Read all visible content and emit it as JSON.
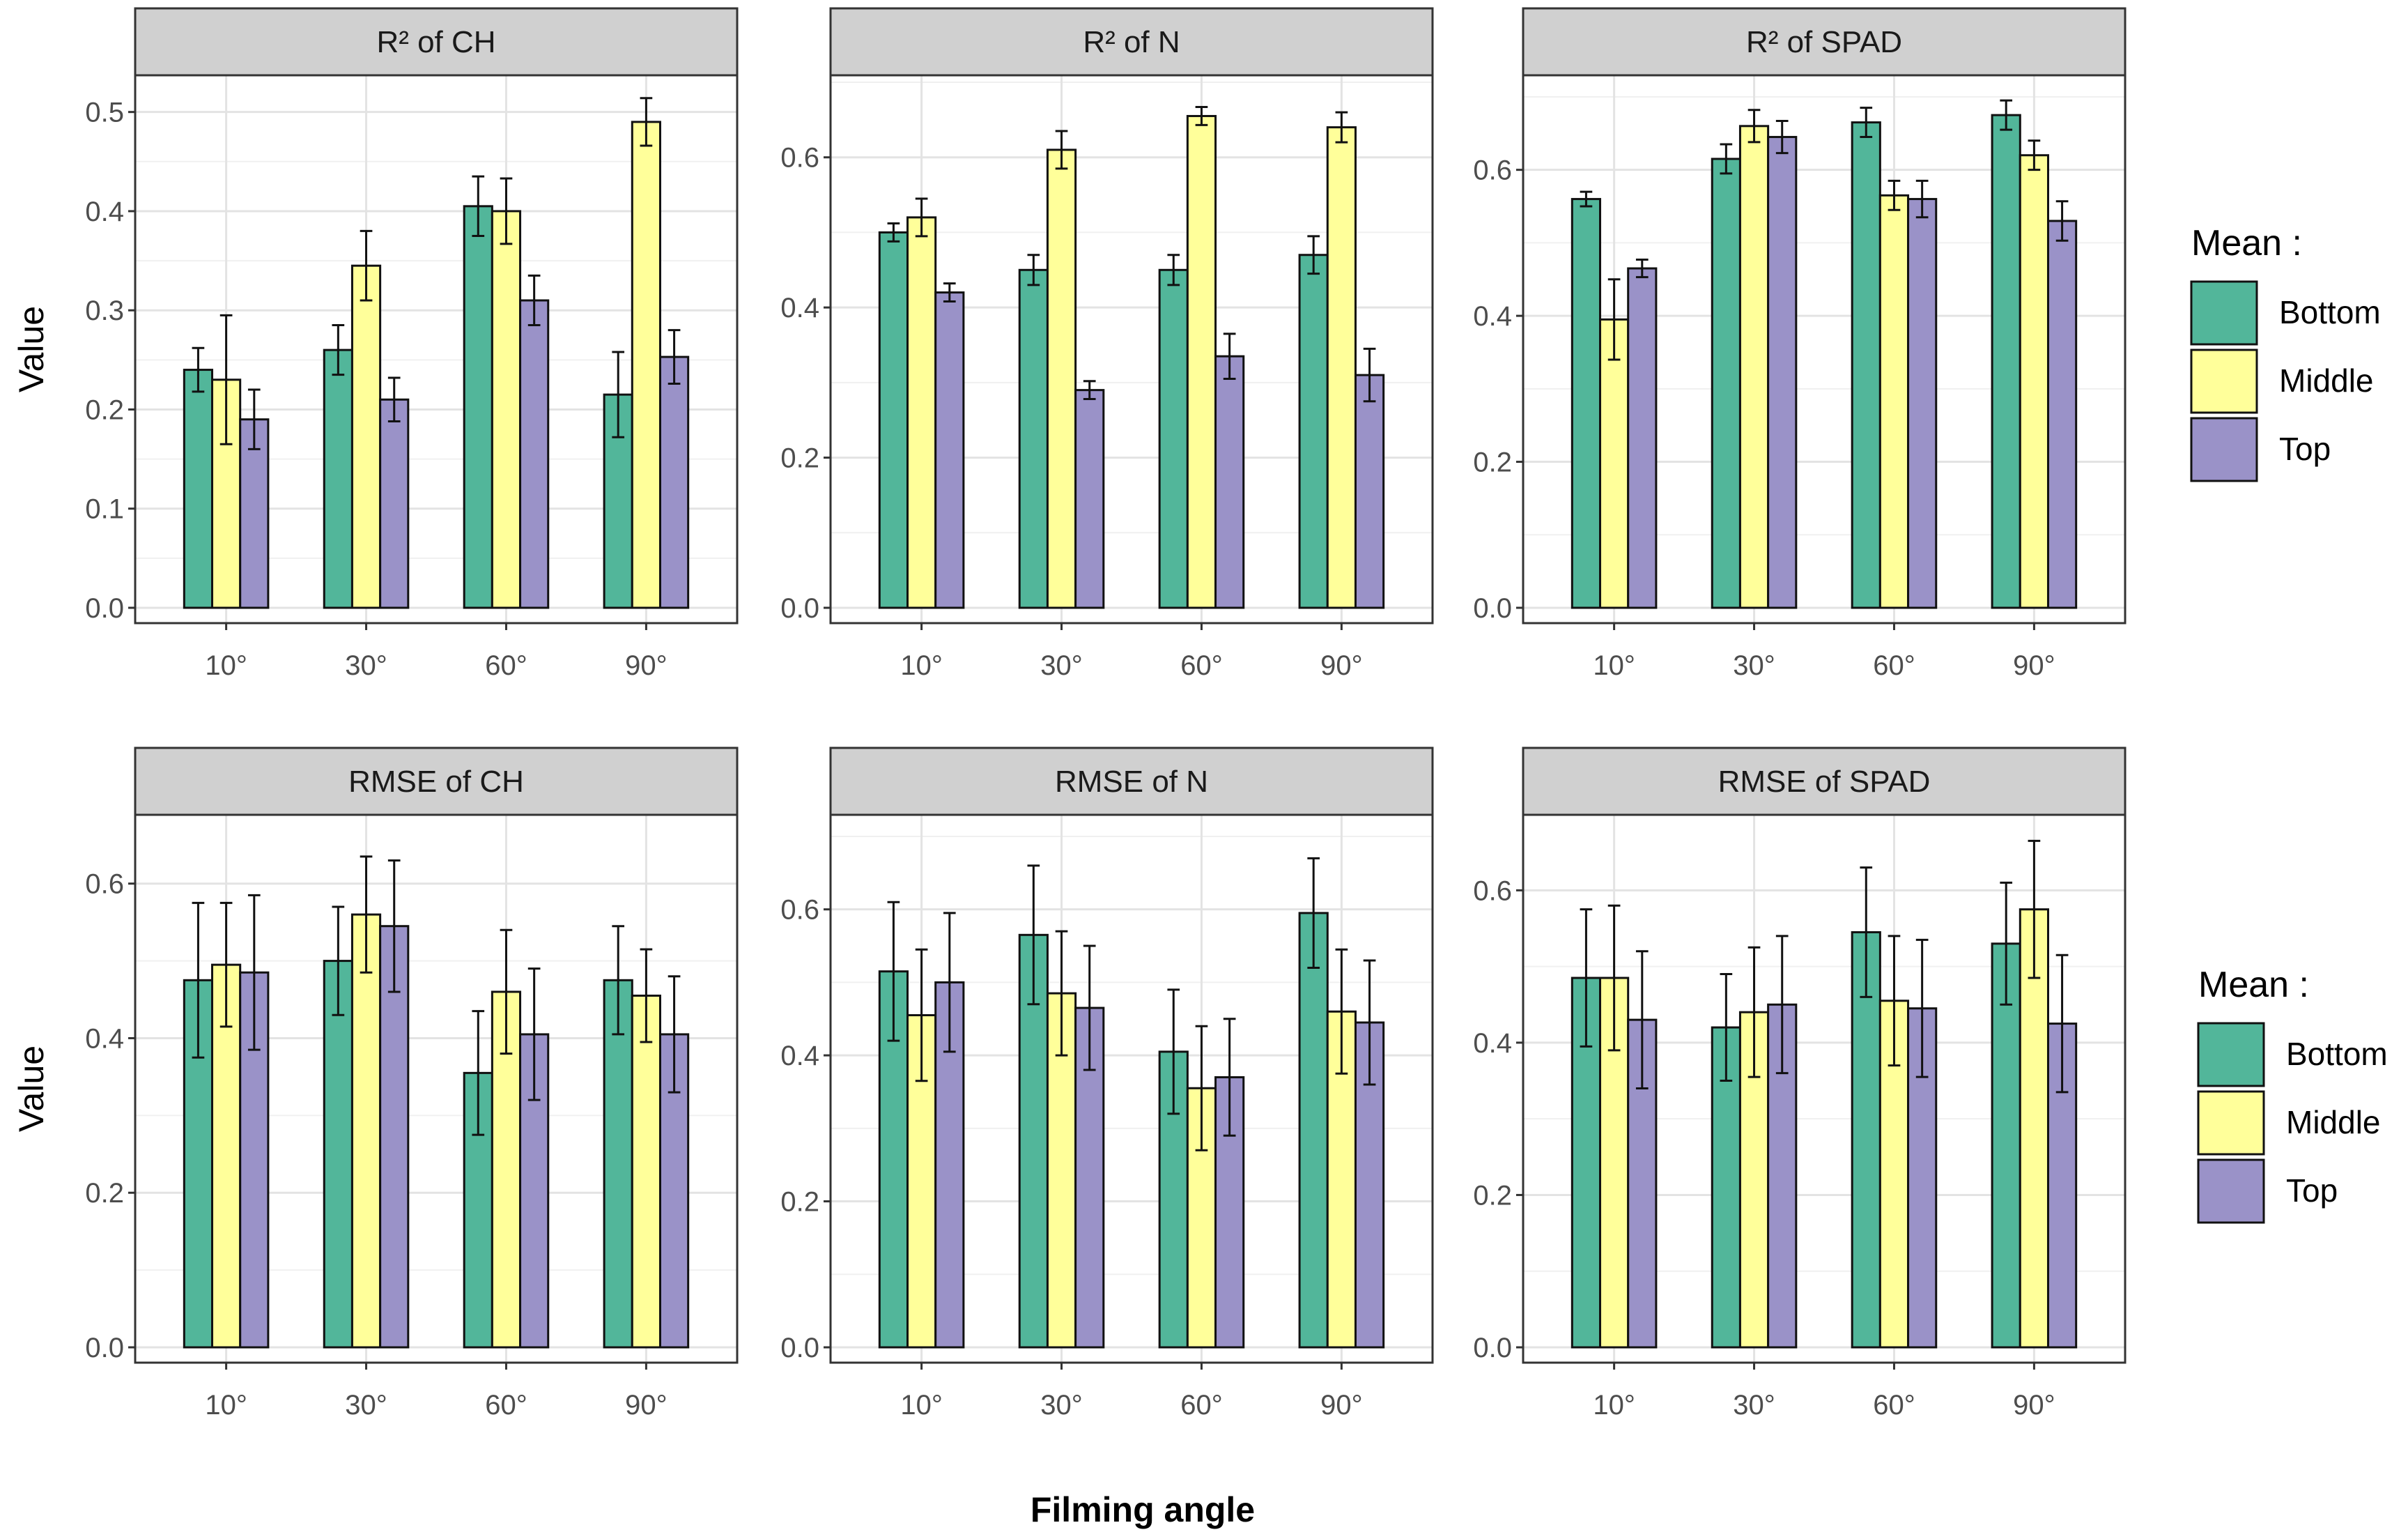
{
  "chart_data": [
    {
      "type": "bar",
      "title": "R² of CH",
      "categories": [
        "10°",
        "30°",
        "60°",
        "90°"
      ],
      "ylabel": "Value",
      "ylim": [
        0,
        0.53
      ],
      "yticks": [
        0.0,
        0.1,
        0.2,
        0.3,
        0.4,
        0.5
      ],
      "series": [
        {
          "name": "Bottom",
          "values": [
            0.24,
            0.26,
            0.405,
            0.215
          ],
          "errors": [
            0.022,
            0.025,
            0.03,
            0.043
          ]
        },
        {
          "name": "Middle",
          "values": [
            0.23,
            0.345,
            0.4,
            0.49
          ],
          "errors": [
            0.065,
            0.035,
            0.033,
            0.024
          ]
        },
        {
          "name": "Top",
          "values": [
            0.19,
            0.21,
            0.31,
            0.253
          ],
          "errors": [
            0.03,
            0.022,
            0.025,
            0.027
          ]
        }
      ]
    },
    {
      "type": "bar",
      "title": "R² of N",
      "categories": [
        "10°",
        "30°",
        "60°",
        "90°"
      ],
      "ylabel": "",
      "ylim": [
        0,
        0.7
      ],
      "yticks": [
        0.0,
        0.2,
        0.4,
        0.6
      ],
      "series": [
        {
          "name": "Bottom",
          "values": [
            0.5,
            0.45,
            0.45,
            0.47
          ],
          "errors": [
            0.012,
            0.02,
            0.02,
            0.025
          ]
        },
        {
          "name": "Middle",
          "values": [
            0.52,
            0.61,
            0.655,
            0.64
          ],
          "errors": [
            0.025,
            0.025,
            0.012,
            0.02
          ]
        },
        {
          "name": "Top",
          "values": [
            0.42,
            0.29,
            0.335,
            0.31
          ],
          "errors": [
            0.012,
            0.012,
            0.03,
            0.035
          ]
        }
      ]
    },
    {
      "type": "bar",
      "title": "R² of SPAD",
      "categories": [
        "10°",
        "30°",
        "60°",
        "90°"
      ],
      "ylabel": "",
      "ylim": [
        0,
        0.72
      ],
      "yticks": [
        0.0,
        0.2,
        0.4,
        0.6
      ],
      "series": [
        {
          "name": "Bottom",
          "values": [
            0.56,
            0.615,
            0.665,
            0.675
          ],
          "errors": [
            0.01,
            0.02,
            0.02,
            0.02
          ]
        },
        {
          "name": "Middle",
          "values": [
            0.395,
            0.66,
            0.565,
            0.62
          ],
          "errors": [
            0.055,
            0.022,
            0.02,
            0.02
          ]
        },
        {
          "name": "Top",
          "values": [
            0.465,
            0.645,
            0.56,
            0.53
          ],
          "errors": [
            0.012,
            0.022,
            0.025,
            0.027
          ]
        }
      ]
    },
    {
      "type": "bar",
      "title": "RMSE of CH",
      "categories": [
        "10°",
        "30°",
        "60°",
        "90°"
      ],
      "ylabel": "Value",
      "ylim": [
        0,
        0.68
      ],
      "yticks": [
        0.0,
        0.2,
        0.4,
        0.6
      ],
      "series": [
        {
          "name": "Bottom",
          "values": [
            0.475,
            0.5,
            0.355,
            0.475
          ],
          "errors": [
            0.1,
            0.07,
            0.08,
            0.07
          ]
        },
        {
          "name": "Middle",
          "values": [
            0.495,
            0.56,
            0.46,
            0.455
          ],
          "errors": [
            0.08,
            0.075,
            0.08,
            0.06
          ]
        },
        {
          "name": "Top",
          "values": [
            0.485,
            0.545,
            0.405,
            0.405
          ],
          "errors": [
            0.1,
            0.085,
            0.085,
            0.075
          ]
        }
      ]
    },
    {
      "type": "bar",
      "title": "RMSE of N",
      "categories": [
        "10°",
        "30°",
        "60°",
        "90°"
      ],
      "ylabel": "",
      "ylim": [
        0,
        0.72
      ],
      "yticks": [
        0.0,
        0.2,
        0.4,
        0.6
      ],
      "series": [
        {
          "name": "Bottom",
          "values": [
            0.515,
            0.565,
            0.405,
            0.595
          ],
          "errors": [
            0.095,
            0.095,
            0.085,
            0.075
          ]
        },
        {
          "name": "Middle",
          "values": [
            0.455,
            0.485,
            0.355,
            0.46
          ],
          "errors": [
            0.09,
            0.085,
            0.085,
            0.085
          ]
        },
        {
          "name": "Top",
          "values": [
            0.5,
            0.465,
            0.37,
            0.445
          ],
          "errors": [
            0.095,
            0.085,
            0.08,
            0.085
          ]
        }
      ]
    },
    {
      "type": "bar",
      "title": "RMSE of SPAD",
      "categories": [
        "10°",
        "30°",
        "60°",
        "90°"
      ],
      "ylabel": "",
      "ylim": [
        0,
        0.69
      ],
      "yticks": [
        0.0,
        0.2,
        0.4,
        0.6
      ],
      "series": [
        {
          "name": "Bottom",
          "values": [
            0.485,
            0.42,
            0.545,
            0.53
          ],
          "errors": [
            0.09,
            0.07,
            0.085,
            0.08
          ]
        },
        {
          "name": "Middle",
          "values": [
            0.485,
            0.44,
            0.455,
            0.575
          ],
          "errors": [
            0.095,
            0.085,
            0.085,
            0.09
          ]
        },
        {
          "name": "Top",
          "values": [
            0.43,
            0.45,
            0.445,
            0.425
          ],
          "errors": [
            0.09,
            0.09,
            0.09,
            0.09
          ]
        }
      ]
    }
  ],
  "xlabel": "Filming angle",
  "legend": {
    "title": "Mean :",
    "items": [
      "Bottom",
      "Middle",
      "Top"
    ]
  },
  "colors": {
    "Bottom": "#52b69a",
    "Middle": "#ffff9a",
    "Top": "#9a92c8",
    "strip_bg": "#d0d0d0",
    "grid": "#e3e3e3",
    "border": "#333333"
  }
}
